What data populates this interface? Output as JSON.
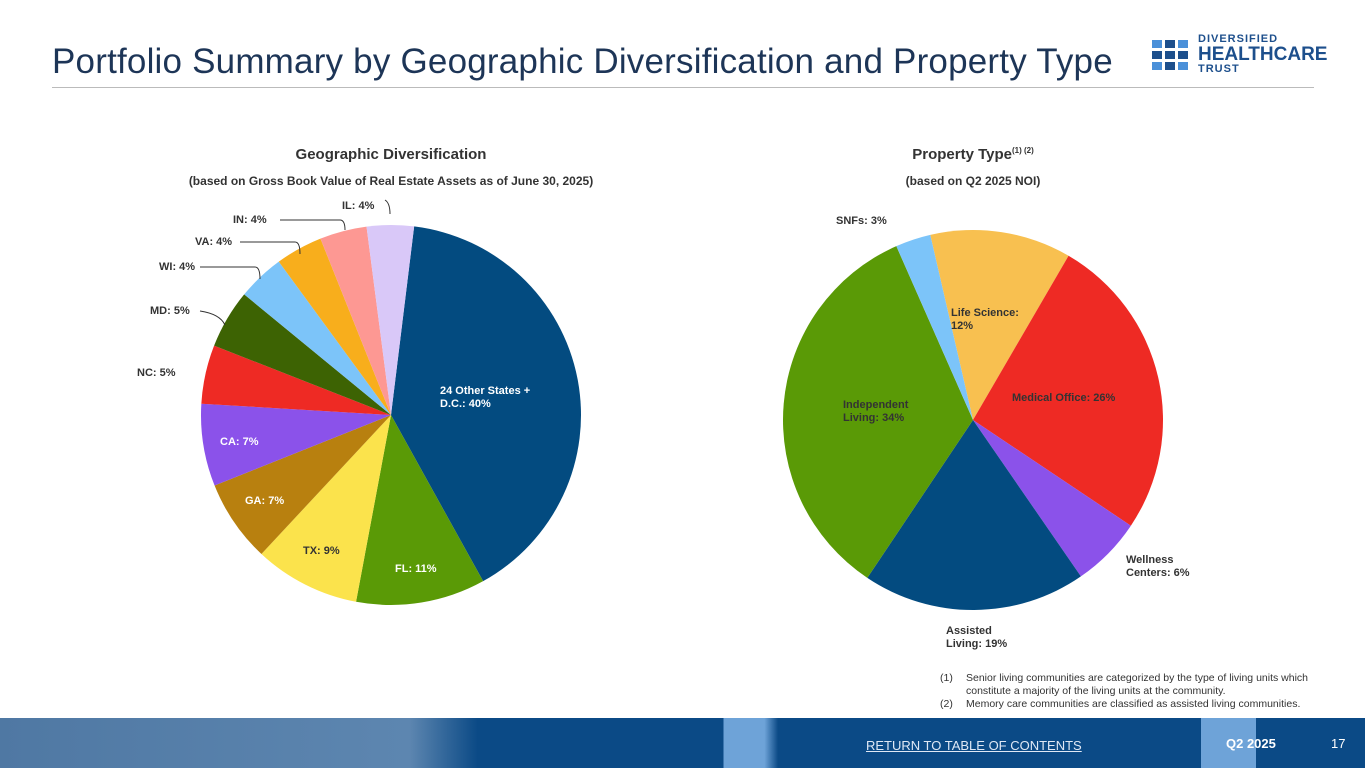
{
  "header": {
    "title": "Portfolio Summary by Geographic Diversification and Property Type",
    "logo": {
      "line1": "DIVERSIFIED",
      "line2": "HEALTHCARE",
      "line3": "TRUST"
    }
  },
  "chart_data": [
    {
      "type": "pie",
      "title": "Geographic Diversification",
      "subtitle": "(based on Gross Book Value of Real Estate Assets as of June 30, 2025)",
      "categories": [
        "24 Other States + D.C.",
        "FL",
        "TX",
        "GA",
        "CA",
        "NC",
        "MD",
        "WI",
        "VA",
        "IN",
        "IL"
      ],
      "values": [
        40,
        11,
        9,
        7,
        7,
        5,
        5,
        4,
        4,
        4,
        4
      ],
      "labels": [
        "24 Other States + D.C.: 40%",
        "FL: 11%",
        "TX: 9%",
        "GA: 7%",
        "CA: 7%",
        "NC: 5%",
        "MD: 5%",
        "WI: 4%",
        "VA: 4%",
        "IN: 4%",
        "IL: 4%"
      ],
      "colors": [
        "#034b80",
        "#5a9a06",
        "#fbe34c",
        "#b8800f",
        "#8b52ea",
        "#ee2a24",
        "#3d6303",
        "#7cc4f9",
        "#f8ae1c",
        "#fd9893",
        "#d9c8f8"
      ]
    },
    {
      "type": "pie",
      "title": "Property Type",
      "title_superscript": "(1) (2)",
      "subtitle": "(based on Q2 2025 NOI)",
      "categories": [
        "Life Science",
        "Medical Office",
        "Wellness Centers",
        "Assisted Living",
        "Independent Living",
        "SNFs"
      ],
      "values": [
        12,
        26,
        6,
        19,
        34,
        3
      ],
      "labels": [
        "Life Science: 12%",
        "Medical Office: 26%",
        "Wellness Centers: 6%",
        "Assisted Living: 19%",
        "Independent Living: 34%",
        "SNFs: 3%"
      ],
      "colors": [
        "#f8c050",
        "#ee2a24",
        "#8b52ea",
        "#034b80",
        "#5a9a06",
        "#7cc4f9"
      ]
    }
  ],
  "footnotes": [
    {
      "num": "(1)",
      "text": "Senior living communities are categorized by the type of living units which constitute a majority of the living units at the community."
    },
    {
      "num": "(2)",
      "text": "Memory care communities are classified as assisted living communities."
    }
  ],
  "footer": {
    "link": "RETURN TO TABLE OF CONTENTS",
    "quarter": "Q2 2025",
    "page": "17"
  }
}
